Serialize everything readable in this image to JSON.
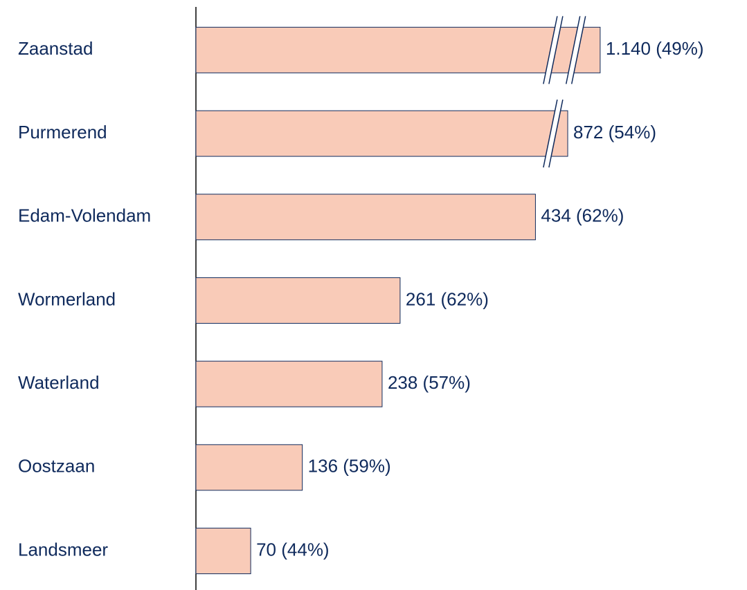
{
  "chart_data": {
    "type": "bar",
    "orientation": "horizontal",
    "categories": [
      "Zaanstad",
      "Purmerend",
      "Edam-Volendam",
      "Wormerland",
      "Waterland",
      "Oostzaan",
      "Landsmeer"
    ],
    "values": [
      1140,
      872,
      434,
      261,
      238,
      136,
      70
    ],
    "value_labels": [
      "1.140 (49%)",
      "872 (54%)",
      "434 (62%)",
      "261 (62%)",
      "238 (57%)",
      "136 (59%)",
      "70 (44%)"
    ],
    "color": "#f9cbb8"
  }
}
